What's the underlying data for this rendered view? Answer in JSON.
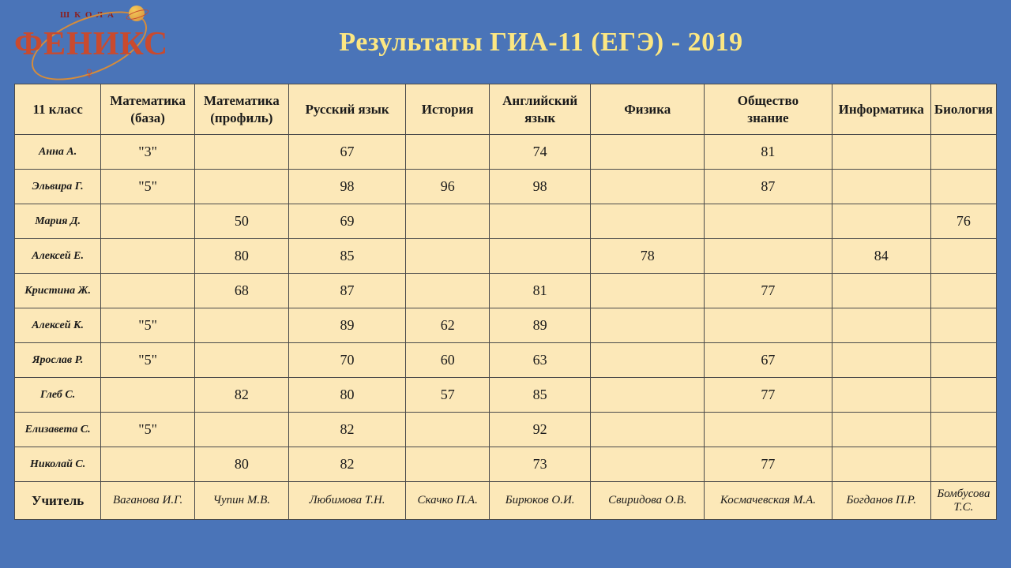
{
  "logo": {
    "subtext": "ШКОЛА",
    "main": "ФЕНИКС",
    "bottom_symbol": "♀"
  },
  "title": "Результаты ГИА-11 (ЕГЭ) - 2019",
  "colors": {
    "page_bg": "#4a74b8",
    "table_bg": "#fce8b8",
    "title_color": "#fce782",
    "border_color": "#4a4a4a",
    "logo_color": "#c94a2e"
  },
  "table": {
    "columns": [
      "11 класс",
      "Математика (база)",
      "Математика (профиль)",
      "Русский язык",
      "История",
      "Английский язык",
      "Физика",
      "Общество знание",
      "Информатика",
      "Биология"
    ],
    "rows": [
      {
        "name": "Анна А.",
        "cells": [
          "\"3\"",
          "",
          "67",
          "",
          "74",
          "",
          "81",
          "",
          ""
        ]
      },
      {
        "name": "Эльвира Г.",
        "cells": [
          "\"5\"",
          "",
          "98",
          "96",
          "98",
          "",
          "87",
          "",
          ""
        ]
      },
      {
        "name": "Мария Д.",
        "cells": [
          "",
          "50",
          "69",
          "",
          "",
          "",
          "",
          "",
          "76"
        ]
      },
      {
        "name": "Алексей Е.",
        "cells": [
          "",
          "80",
          "85",
          "",
          "",
          "78",
          "",
          "84",
          ""
        ]
      },
      {
        "name": "Кристина Ж.",
        "cells": [
          "",
          "68",
          "87",
          "",
          "81",
          "",
          "77",
          "",
          ""
        ]
      },
      {
        "name": "Алексей К.",
        "cells": [
          "\"5\"",
          "",
          "89",
          "62",
          "89",
          "",
          "",
          "",
          ""
        ]
      },
      {
        "name": "Ярослав Р.",
        "cells": [
          "\"5\"",
          "",
          "70",
          "60",
          "63",
          "",
          "67",
          "",
          ""
        ]
      },
      {
        "name": "Глеб С.",
        "cells": [
          "",
          "82",
          "80",
          "57",
          "85",
          "",
          "77",
          "",
          ""
        ]
      },
      {
        "name": "Елизавета С.",
        "cells": [
          "\"5\"",
          "",
          "82",
          "",
          "92",
          "",
          "",
          "",
          ""
        ]
      },
      {
        "name": "Николай С.",
        "cells": [
          "",
          "80",
          "82",
          "",
          "73",
          "",
          "77",
          "",
          ""
        ]
      }
    ],
    "teacher_row": {
      "label": "Учитель",
      "cells": [
        "Ваганова И.Г.",
        "Чупин М.В.",
        "Любимова Т.Н.",
        "Скачко П.А.",
        "Бирюков О.И.",
        "Свиридова О.В.",
        "Космачевская М.А.",
        "Богданов П.Р.",
        "Бомбусова Т.С."
      ]
    }
  }
}
